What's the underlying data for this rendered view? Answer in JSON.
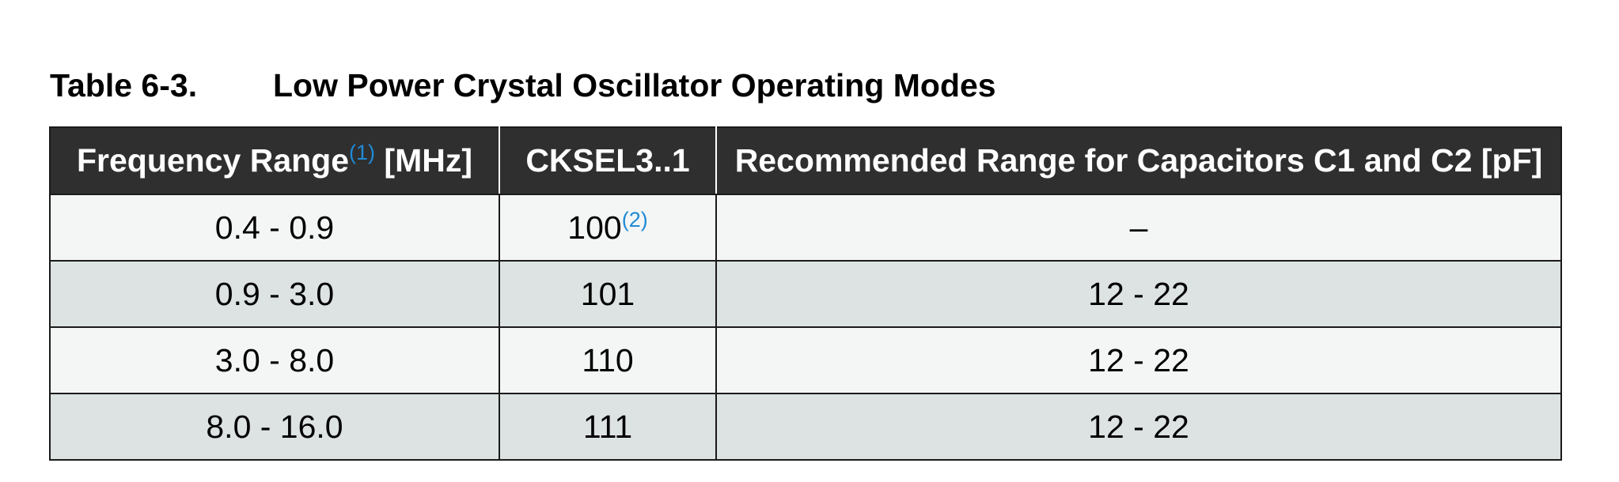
{
  "caption": {
    "number": "Table 6-3.",
    "title": "Low Power Crystal Oscillator Operating Modes"
  },
  "table": {
    "headers": [
      {
        "text": "Frequency Range",
        "footnote": "(1)",
        "suffix": " [MHz]"
      },
      {
        "text": "CKSEL3..1",
        "footnote": "",
        "suffix": ""
      },
      {
        "text": "Recommended Range for Capacitors C1 and C2 [pF]",
        "footnote": "",
        "suffix": ""
      }
    ],
    "rows": [
      {
        "freq": "0.4 - 0.9",
        "cksel": "100",
        "cksel_footnote": "(2)",
        "caps": "–"
      },
      {
        "freq": "0.9 - 3.0",
        "cksel": "101",
        "cksel_footnote": "",
        "caps": "12 - 22"
      },
      {
        "freq": "3.0 - 8.0",
        "cksel": "110",
        "cksel_footnote": "",
        "caps": "12 - 22"
      },
      {
        "freq": "8.0 - 16.0",
        "cksel": "111",
        "cksel_footnote": "",
        "caps": "12 - 22"
      }
    ]
  },
  "colors": {
    "header_bg": "#2f2f2f",
    "row_odd_bg": "#f4f6f5",
    "row_even_bg": "#dce3e2",
    "footnote": "#1f8ad6"
  }
}
